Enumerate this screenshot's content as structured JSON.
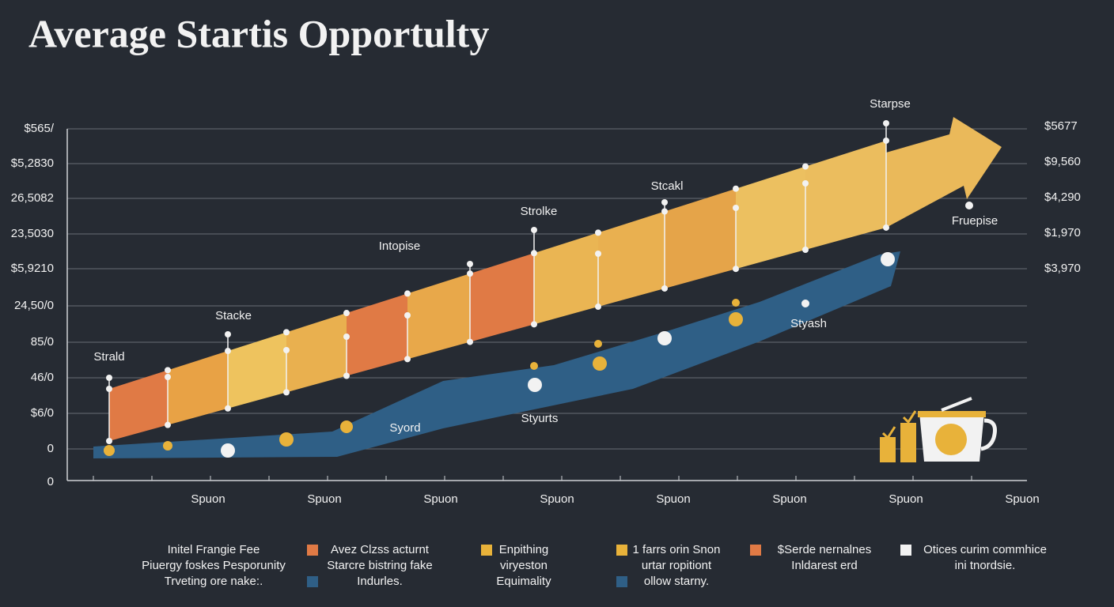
{
  "title": "Average Startis Opportulty",
  "left_axis": [
    "$565/",
    "$5,2830",
    "26,5082",
    "23,5030",
    "$5,9210",
    "24,50/0",
    "85/0",
    "46/0",
    "$6/0",
    "0",
    "0"
  ],
  "right_axis": [
    "$5677",
    "$9,560",
    "$4,290",
    "$1,970",
    "$3,970"
  ],
  "x_labels": [
    "Spuon",
    "Spuon",
    "Spuon",
    "Spuon",
    "Spuon",
    "Spuon",
    "Spuon",
    "Spuon"
  ],
  "annotations": [
    "Starpse",
    "Stcakl",
    "Strolke",
    "Intopise",
    "Stacke",
    "Strald",
    "Fruepise",
    "Styash",
    "Syord",
    "Styurts"
  ],
  "legend": [
    {
      "lines": [
        "Initel Frangie Fee",
        "Piuergy foskes Pesporunity",
        "Trveting ore nake:."
      ]
    },
    {
      "lines": [
        "Avez Clzss acturnt",
        "Starcre bistring fake",
        "Indurles."
      ]
    },
    {
      "lines": [
        "Enpithing",
        "viryeston",
        "Equimality"
      ]
    },
    {
      "lines": [
        "1 farrs orin Snon",
        "urtar ropitiont",
        "ollow starny."
      ]
    },
    {
      "lines": [
        "$Serde nernalnes",
        "Inldarest erd"
      ]
    },
    {
      "lines": [
        "Otices curim commhice",
        "ini tnordsie."
      ]
    }
  ]
}
